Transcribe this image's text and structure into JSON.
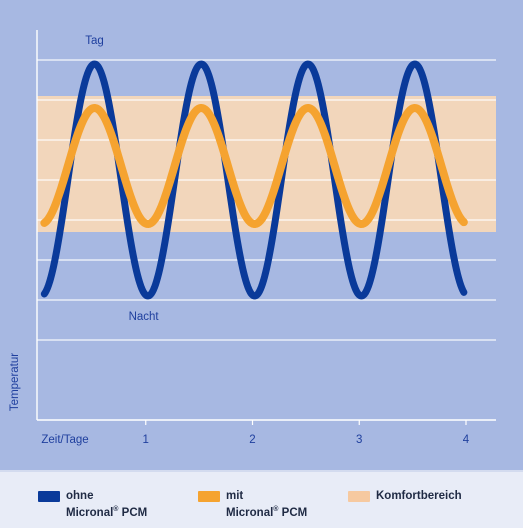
{
  "chart_data": {
    "type": "line",
    "ylabel": "Temperatur",
    "x_axis": {
      "range": [
        0,
        4
      ],
      "ticks": [
        {
          "value": 0,
          "label": "Zeit/Tage"
        },
        {
          "value": 1,
          "label": "1"
        },
        {
          "value": 2,
          "label": "2"
        },
        {
          "value": 3,
          "label": "3"
        },
        {
          "value": 4,
          "label": "4"
        }
      ]
    },
    "y_axis": {
      "range": [
        0,
        10
      ],
      "tick_labels": false
    },
    "grid": true,
    "gridlines_y": [
      2,
      3,
      4,
      5,
      6,
      7,
      8,
      9
    ],
    "comfort_band": {
      "name": "Komfortbereich",
      "y_min": 4.7,
      "y_max": 8.1,
      "color": "#f6d7b8"
    },
    "series": [
      {
        "name": "ohne Micronal® PCM",
        "color": "#0a3a9a",
        "x_start": 0.05,
        "x_end": 3.98,
        "center": 6.0,
        "amplitude": 2.9,
        "period": 1.0,
        "peak_at": 0.52
      },
      {
        "name": "mit Micronal® PCM",
        "color": "#f5a330",
        "x_start": 0.05,
        "x_end": 3.98,
        "center": 6.35,
        "amplitude": 1.45,
        "period": 1.0,
        "peak_at": 0.52
      }
    ],
    "annotations": [
      {
        "text": "Tag",
        "x": 0.52,
        "y": 9.4
      },
      {
        "text": "Nacht",
        "x": 0.98,
        "y": 2.5
      }
    ],
    "legend": {
      "placement": "bottom",
      "items": [
        {
          "label_line1": "ohne",
          "label_line2": "Micronal",
          "label_sup": "®",
          "label_line2_end": " PCM",
          "color": "#0a3a9a"
        },
        {
          "label_line1": "mit",
          "label_line2": "Micronal",
          "label_sup": "®",
          "label_line2_end": " PCM",
          "color": "#f5a330"
        },
        {
          "label_line1": "Komfortbereich",
          "color": "#f6c9a0"
        }
      ]
    }
  },
  "colors": {
    "plot_background": "#a7b8e2",
    "gridline": "#ffffff",
    "axis": "#ffffff",
    "label_text": "#1f3f9e"
  }
}
